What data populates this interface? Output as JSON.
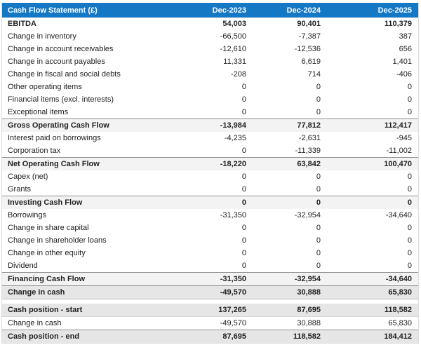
{
  "table": {
    "title": "Cash Flow Statement (£)",
    "columns": [
      "Dec-2023",
      "Dec-2024",
      "Dec-2025"
    ],
    "rows": [
      {
        "label": "EBITDA",
        "values": [
          "54,003",
          "90,401",
          "110,379"
        ],
        "type": "lead"
      },
      {
        "label": "Change in inventory",
        "values": [
          "-66,500",
          "-7,387",
          "387"
        ],
        "type": "item"
      },
      {
        "label": "Change in account receivables",
        "values": [
          "-12,610",
          "-12,536",
          "656"
        ],
        "type": "item"
      },
      {
        "label": "Change in account payables",
        "values": [
          "11,331",
          "6,619",
          "1,401"
        ],
        "type": "item"
      },
      {
        "label": "Change in fiscal and social debts",
        "values": [
          "-208",
          "714",
          "-406"
        ],
        "type": "item"
      },
      {
        "label": "Other operating items",
        "values": [
          "0",
          "0",
          "0"
        ],
        "type": "item"
      },
      {
        "label": "Financial items (excl. interests)",
        "values": [
          "0",
          "0",
          "0"
        ],
        "type": "item"
      },
      {
        "label": "Exceptional items",
        "values": [
          "0",
          "0",
          "0"
        ],
        "type": "item"
      },
      {
        "label": "Gross Operating Cash Flow",
        "values": [
          "-13,984",
          "77,812",
          "112,417"
        ],
        "type": "subtotal"
      },
      {
        "label": "Interest paid on borrowings",
        "values": [
          "-4,235",
          "-2,631",
          "-945"
        ],
        "type": "item"
      },
      {
        "label": "Corporation tax",
        "values": [
          "0",
          "-11,339",
          "-11,002"
        ],
        "type": "item"
      },
      {
        "label": "Net Operating Cash Flow",
        "values": [
          "-18,220",
          "63,842",
          "100,470"
        ],
        "type": "subtotal"
      },
      {
        "label": "Capex (net)",
        "values": [
          "0",
          "0",
          "0"
        ],
        "type": "item"
      },
      {
        "label": "Grants",
        "values": [
          "0",
          "0",
          "0"
        ],
        "type": "item"
      },
      {
        "label": "Investing Cash Flow",
        "values": [
          "0",
          "0",
          "0"
        ],
        "type": "subtotal"
      },
      {
        "label": "Borrowings",
        "values": [
          "-31,350",
          "-32,954",
          "-34,640"
        ],
        "type": "item"
      },
      {
        "label": "Change in share capital",
        "values": [
          "0",
          "0",
          "0"
        ],
        "type": "item"
      },
      {
        "label": "Change in shareholder loans",
        "values": [
          "0",
          "0",
          "0"
        ],
        "type": "item"
      },
      {
        "label": "Change in other equity",
        "values": [
          "0",
          "0",
          "0"
        ],
        "type": "item"
      },
      {
        "label": "Dividend",
        "values": [
          "0",
          "0",
          "0"
        ],
        "type": "item"
      },
      {
        "label": "Financing Cash Flow",
        "values": [
          "-31,350",
          "-32,954",
          "-34,640"
        ],
        "type": "subtotal"
      },
      {
        "label": "Change in cash",
        "values": [
          "-49,570",
          "30,888",
          "65,830"
        ],
        "type": "total"
      },
      {
        "label": "",
        "values": [],
        "type": "spacer"
      },
      {
        "label": "Cash position - start",
        "values": [
          "137,265",
          "87,695",
          "118,582"
        ],
        "type": "pos-start"
      },
      {
        "label": "Change in cash",
        "values": [
          "-49,570",
          "30,888",
          "65,830"
        ],
        "type": "item"
      },
      {
        "label": "Cash position - end",
        "values": [
          "87,695",
          "118,582",
          "184,412"
        ],
        "type": "pos-end"
      }
    ]
  },
  "colors": {
    "header_bg": "#1478C5",
    "header_text": "#FFFFFF",
    "subtotal_bg": "#F3F3F3",
    "emphasis_bg": "#E6E6E6",
    "border": "#DCDCDC",
    "rule": "#8F8F8F",
    "text": "#222222"
  }
}
